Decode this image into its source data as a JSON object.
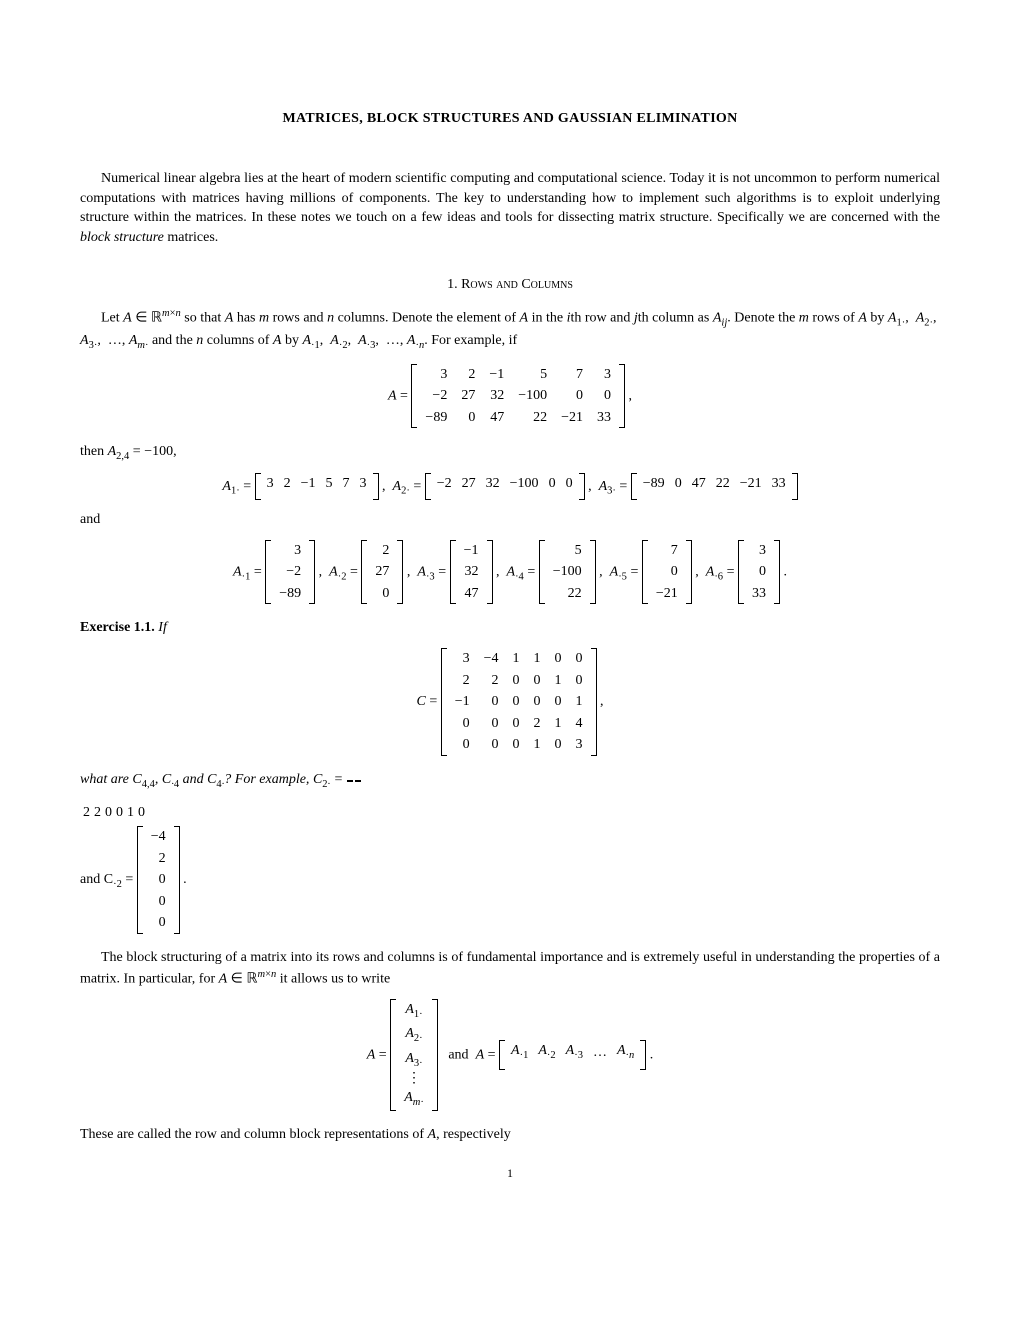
{
  "title": "MATRICES, BLOCK STRUCTURES AND GAUSSIAN ELIMINATION",
  "intro": "Numerical linear algebra lies at the heart of modern scientific computing and computational science. Today it is not uncommon to perform numerical computations with matrices having millions of components. The key to understanding how to implement such algorithms is to exploit underlying structure within the matrices. In these notes we touch on a few ideas and tools for dissecting matrix structure. Specifically we are concerned with the ",
  "intro_italic": "block structure",
  "intro_end": " matrices.",
  "section1_num": "1. ",
  "section1_title": "Rows and Columns",
  "p1a": "Let ",
  "p1a2": " so that ",
  "p1a3": " has ",
  "p1a4": " rows and ",
  "p1a5": " columns. Denote the element of ",
  "p1a6": " in the ",
  "p1a7": "th row and ",
  "p1a8": "th column as ",
  "p1b": ". Denote the ",
  "p1b2": " rows of ",
  "p1b3": " by ",
  "p1b4": " and the ",
  "p1b5": " columns of ",
  "p1b6": " by ",
  "p1b7": ". For example, if",
  "matA": [
    [
      "3",
      "2",
      "−1",
      "5",
      "7",
      "3"
    ],
    [
      "−2",
      "27",
      "32",
      "−100",
      "0",
      "0"
    ],
    [
      "−89",
      "0",
      "47",
      "22",
      "−21",
      "33"
    ]
  ],
  "then_text": "then ",
  "then_val": "A",
  "then_sub": "2,4",
  "then_eq": " = −100,",
  "row1": [
    "3",
    "2",
    "−1",
    "5",
    "7",
    "3"
  ],
  "row2": [
    "−2",
    "27",
    "32",
    "−100",
    "0",
    "0"
  ],
  "row3": [
    "−89",
    "0",
    "47",
    "22",
    "−21",
    "33"
  ],
  "and_text": "and",
  "col1": [
    "3",
    "−2",
    "−89"
  ],
  "col2": [
    "2",
    "27",
    "0"
  ],
  "col3": [
    "−1",
    "32",
    "47"
  ],
  "col4": [
    "5",
    "−100",
    "22"
  ],
  "col5": [
    "7",
    "0",
    "−21"
  ],
  "col6": [
    "3",
    "0",
    "33"
  ],
  "ex_label": "Exercise 1.1.",
  "ex_if": " If",
  "matC": [
    [
      "3",
      "−4",
      "1",
      "1",
      "0",
      "0"
    ],
    [
      "2",
      "2",
      "0",
      "0",
      "1",
      "0"
    ],
    [
      "−1",
      "0",
      "0",
      "0",
      "0",
      "1"
    ],
    [
      "0",
      "0",
      "0",
      "2",
      "1",
      "4"
    ],
    [
      "0",
      "0",
      "0",
      "1",
      "0",
      "3"
    ]
  ],
  "ex_q_a": "what are ",
  "ex_q_b": " and ",
  "ex_q_c": "? For example, ",
  "ex_q_d": " and ",
  "c2row": [
    "2",
    "2",
    "0",
    "0",
    "1",
    "0"
  ],
  "ccol2": [
    "−4",
    "2",
    "0",
    "0",
    "0"
  ],
  "block_p": "The block structuring of a matrix into its rows and columns is of fundamental importance and is extremely useful in understanding the properties of a matrix. In particular, for ",
  "block_p2": " it allows us to write",
  "blockrows": [
    "A",
    "A",
    "A",
    "⋮",
    "A"
  ],
  "final": "These are called the row and column block representations of ",
  "final2": ", respectively",
  "pagenum": "1"
}
